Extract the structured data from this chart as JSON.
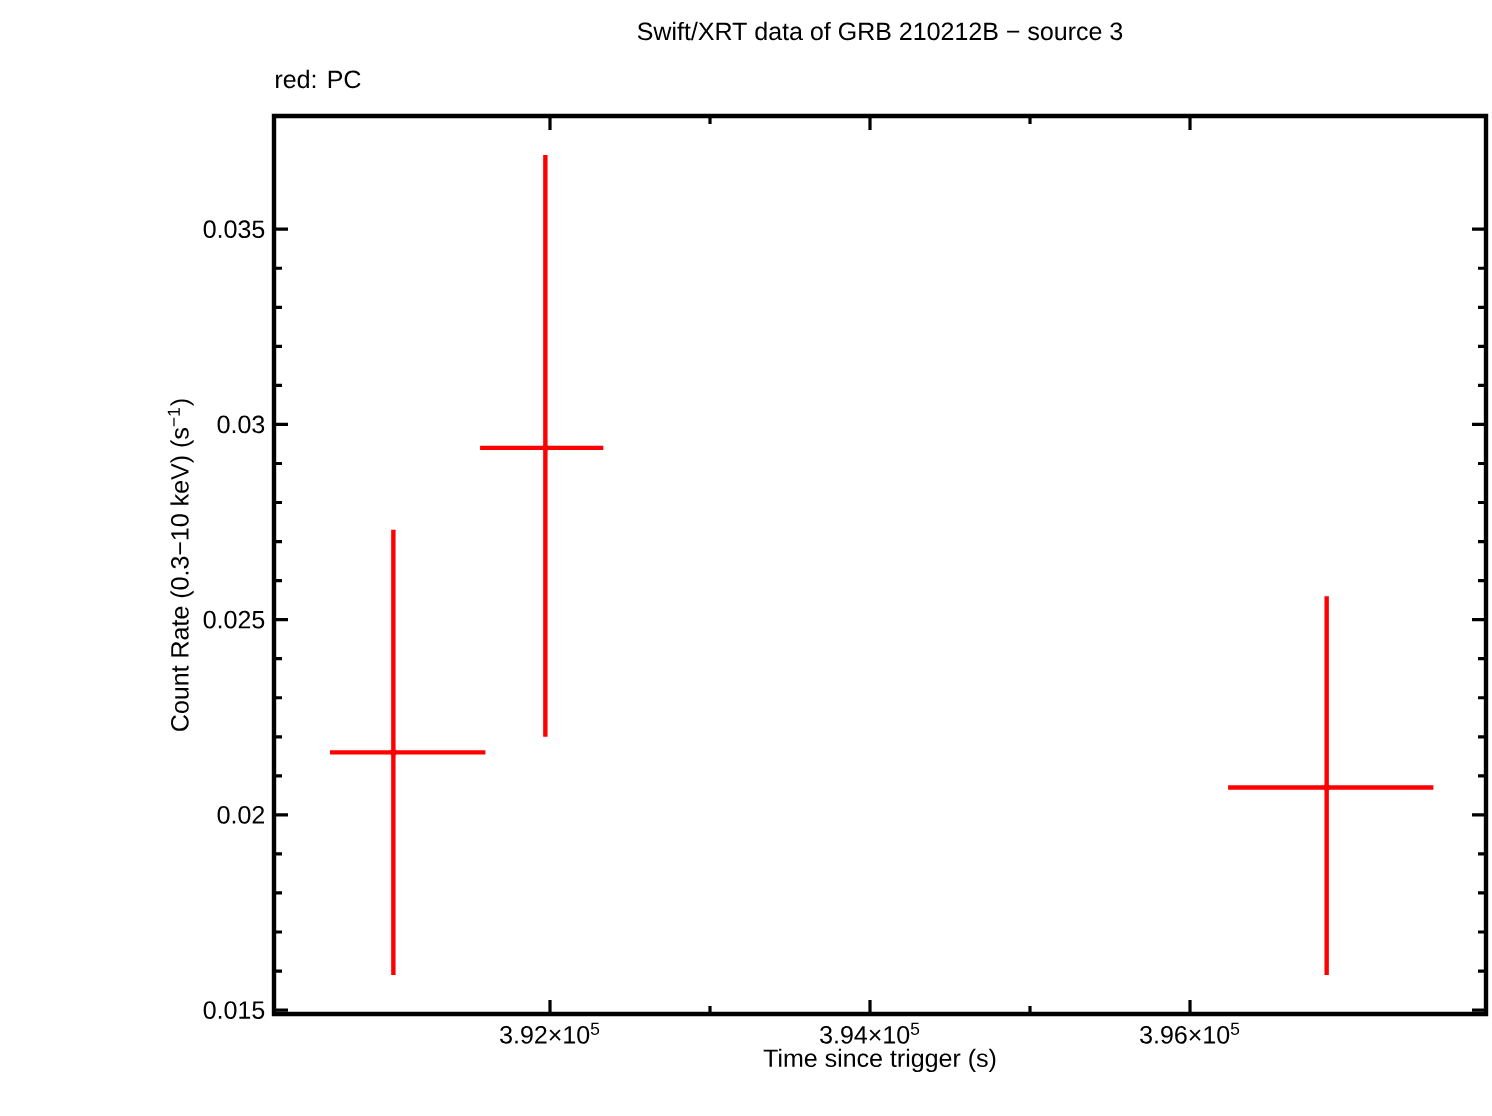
{
  "chart_data": {
    "type": "scatter",
    "title": "Swift/XRT data of GRB 210212B − source 3",
    "subtitle": "red: PC",
    "xlabel": "Time since trigger (s)",
    "ylabel": "Count Rate (0.3−10 keV) (s$^{−1}$)",
    "xlim": [
      390275,
      397850
    ],
    "ylim": [
      0.0149,
      0.0379
    ],
    "xticks": [
      {
        "value": 392000,
        "label": "3.92×10$^{5}$"
      },
      {
        "value": 394000,
        "label": "3.94×10$^{5}$"
      },
      {
        "value": 396000,
        "label": "3.96×10$^{5}$"
      }
    ],
    "yticks": [
      0.015,
      0.02,
      0.025,
      0.03,
      0.035
    ],
    "marker": "none",
    "grid": false,
    "legend": false,
    "series": [
      {
        "color": "#ff0000",
        "x": [
          391021,
          391971,
          396854
        ],
        "values": [
          0.0216,
          0.0294,
          0.0207
        ],
        "errors": [
          [
            0.0159,
            0.0273
          ],
          [
            0.022,
            0.0369
          ],
          [
            0.0159,
            0.0256
          ]
        ],
        "xerrors": [
          [
            390625,
            391596
          ],
          [
            391563,
            392333
          ],
          [
            396238,
            397521
          ]
        ]
      }
    ]
  }
}
